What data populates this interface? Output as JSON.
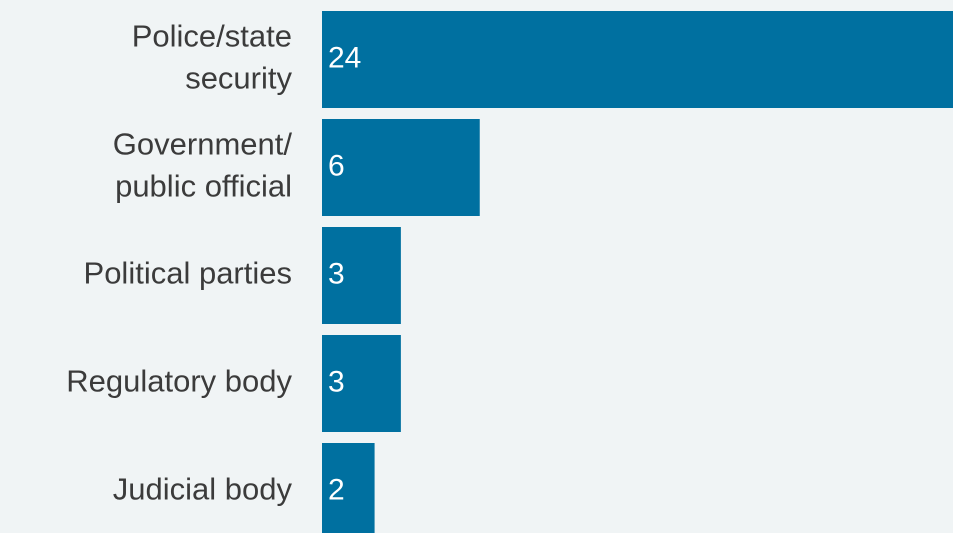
{
  "chart_data": {
    "type": "bar",
    "orientation": "horizontal",
    "categories": [
      [
        "Police/state",
        "security"
      ],
      [
        "Government/",
        "public official"
      ],
      [
        "Political parties"
      ],
      [
        "Regulatory body"
      ],
      [
        "Judicial body"
      ]
    ],
    "values": [
      24,
      6,
      3,
      3,
      2
    ],
    "title": "",
    "xlabel": "",
    "ylabel": "",
    "xlim": [
      0,
      24
    ],
    "grid": false,
    "legend": "none",
    "bar_color": "#0070a0",
    "value_label_color": "#ffffff",
    "category_label_color": "#3b3b3b"
  }
}
